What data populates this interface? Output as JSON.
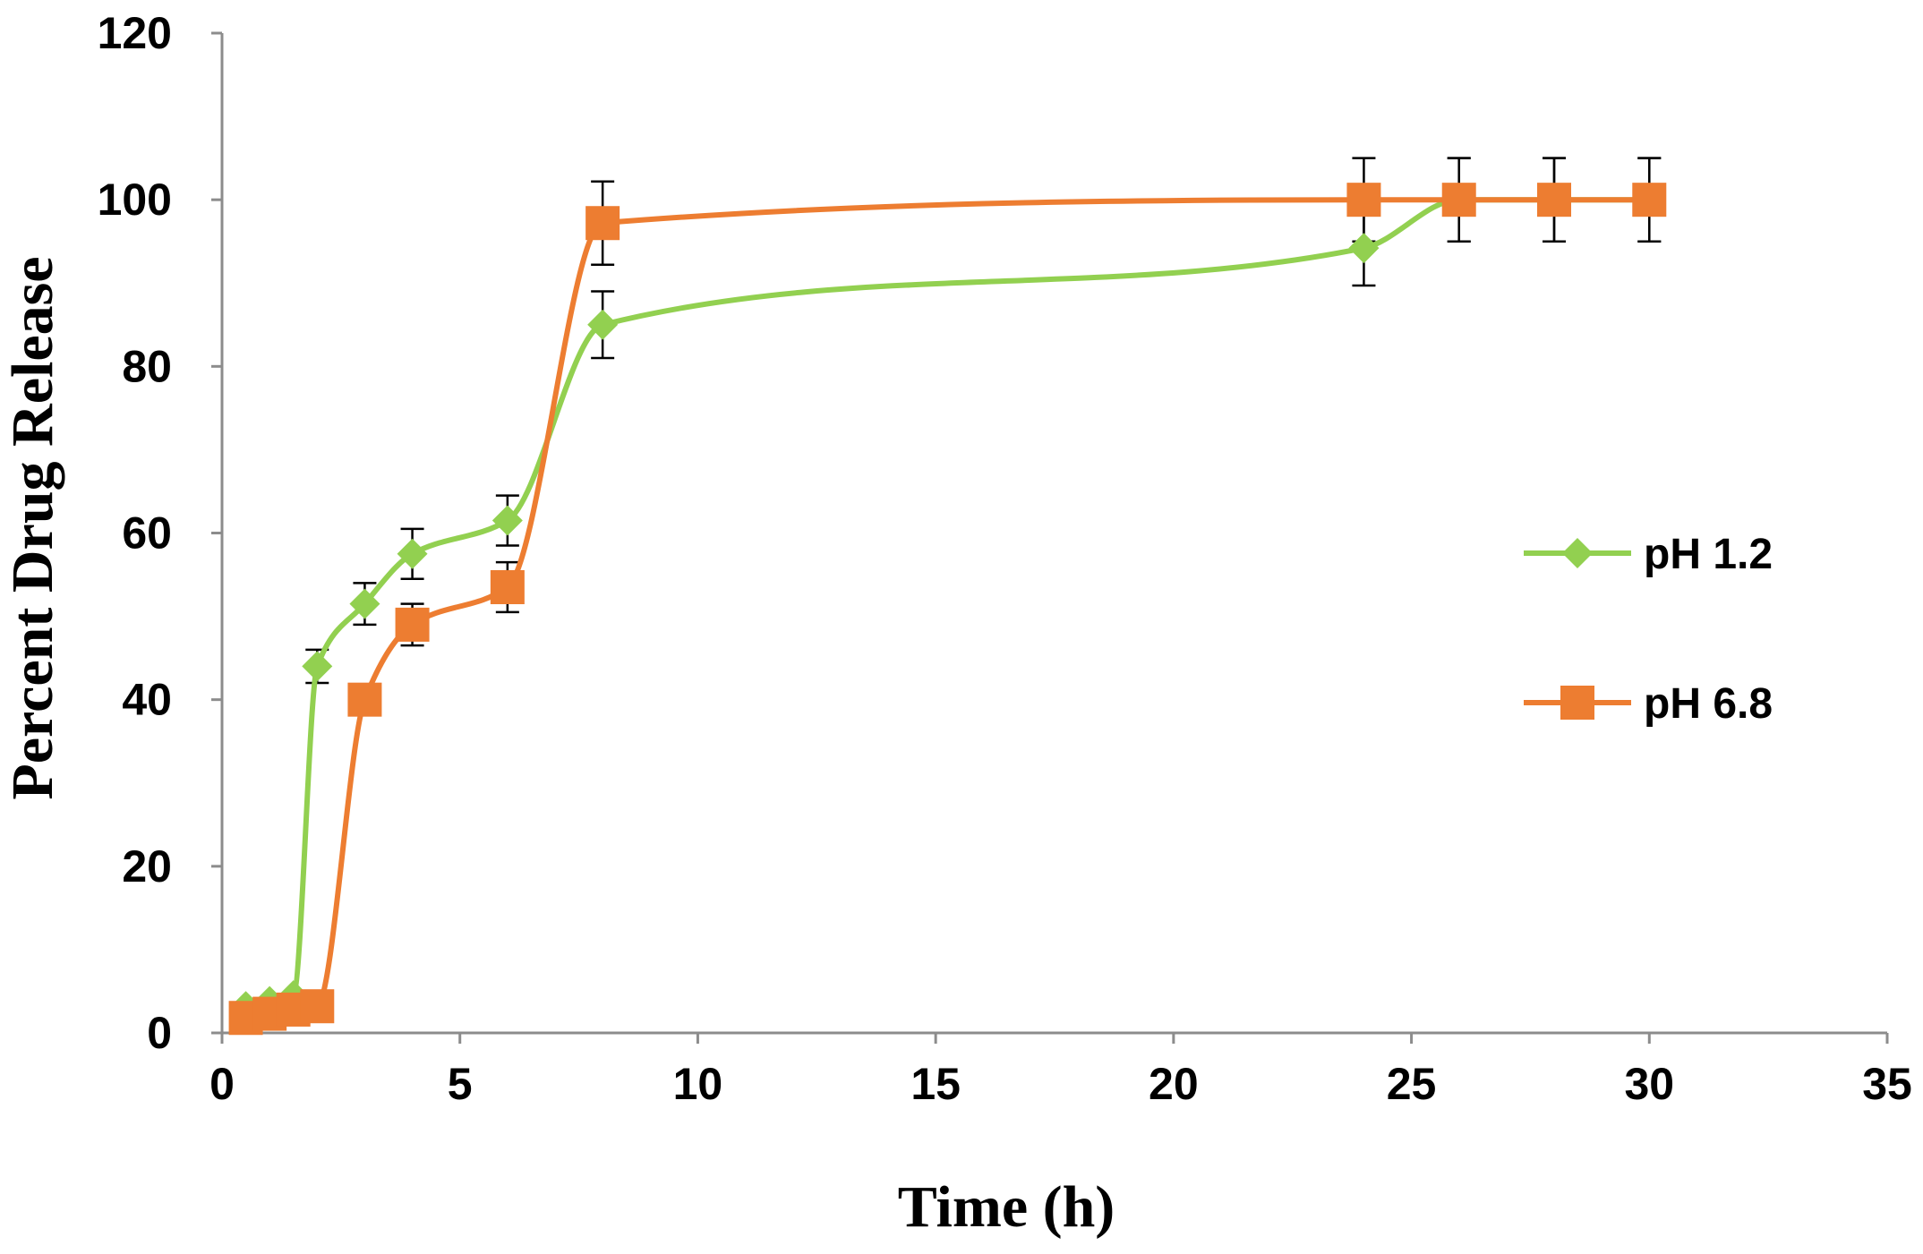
{
  "chart_data": {
    "type": "line",
    "title": "",
    "xlabel": "Time (h)",
    "ylabel": "Percent Drug Release",
    "xlim": [
      0,
      35
    ],
    "ylim": [
      0,
      120
    ],
    "xticks": [
      0,
      5,
      10,
      15,
      20,
      25,
      30,
      35
    ],
    "yticks": [
      0,
      20,
      40,
      60,
      80,
      100,
      120
    ],
    "grid": false,
    "legend_position": "right",
    "series": [
      {
        "name": "pH 1.2",
        "color": "#92d050",
        "marker": "diamond",
        "x": [
          0.5,
          1,
          1.5,
          2,
          3,
          4,
          6,
          8,
          24,
          26,
          28,
          30
        ],
        "y": [
          3.2,
          3.8,
          4.5,
          44,
          51.5,
          57.5,
          61.5,
          85,
          94.2,
          100,
          100,
          100
        ],
        "error": [
          0,
          0,
          0,
          2,
          2.5,
          3,
          3,
          4,
          4.5,
          5,
          5,
          5
        ]
      },
      {
        "name": "pH 6.8",
        "color": "#ed7d31",
        "marker": "square",
        "x": [
          0.5,
          1,
          1.5,
          2,
          3,
          4,
          6,
          8,
          24,
          26,
          28,
          30
        ],
        "y": [
          1.8,
          2.3,
          2.8,
          3.2,
          40,
          49,
          53.5,
          97.2,
          100,
          100,
          100,
          100
        ],
        "error": [
          0,
          0,
          0,
          0,
          0,
          2.5,
          3,
          5,
          5,
          5,
          5,
          5
        ]
      }
    ]
  }
}
